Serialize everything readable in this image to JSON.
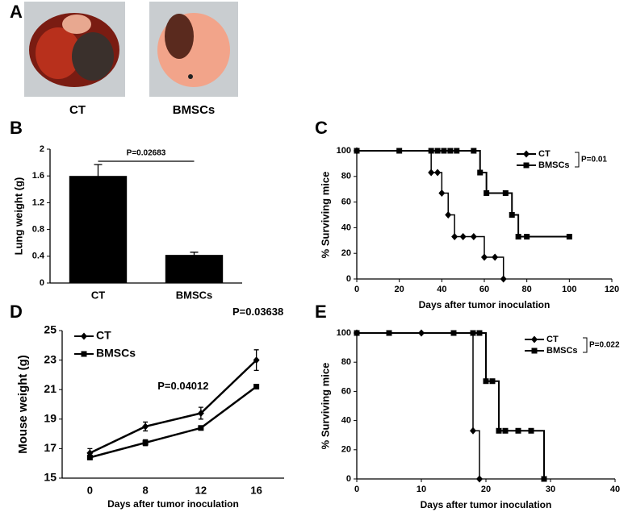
{
  "panel_a": {
    "panel": "A",
    "labels": [
      "CT",
      "BMSCs"
    ]
  },
  "chart_data": [
    {
      "type": "bar",
      "panel": "B",
      "ylabel": "Lung  weight (g)",
      "annotation": "P=0.02683",
      "categories": [
        "CT",
        "BMSCs"
      ],
      "values": [
        1.6,
        0.42
      ],
      "errors": [
        0.17,
        0.04
      ],
      "color": "#000000",
      "ylim": [
        0,
        2
      ],
      "yticks": [
        0,
        0.4,
        0.8,
        1.2,
        1.6,
        2
      ]
    },
    {
      "type": "step",
      "panel": "C",
      "xlabel": "Days after tumor inoculation",
      "ylabel": "% Surviving mice",
      "annotation": "P=0.01",
      "series": [
        {
          "name": "CT",
          "color": "#000000",
          "marker": "diamond",
          "x": [
            0,
            35,
            38,
            40,
            43,
            46,
            50,
            55,
            60,
            65,
            69
          ],
          "values": [
            100,
            83,
            83,
            67,
            50,
            33,
            33,
            33,
            17,
            17,
            0
          ]
        },
        {
          "name": "BMSCs",
          "color": "#000000",
          "marker": "square",
          "x": [
            0,
            20,
            35,
            38,
            41,
            44,
            47,
            55,
            58,
            61,
            70,
            73,
            76,
            80,
            100
          ],
          "values": [
            100,
            100,
            100,
            100,
            100,
            100,
            100,
            100,
            83,
            67,
            67,
            50,
            33,
            33,
            33
          ]
        }
      ],
      "xlim": [
        0,
        120
      ],
      "xticks": [
        0,
        20,
        40,
        60,
        80,
        100,
        120
      ],
      "ylim": [
        0,
        100
      ],
      "yticks": [
        0,
        20,
        40,
        60,
        80,
        100
      ]
    },
    {
      "type": "line",
      "panel": "D",
      "xlabel": "Days after tumor inoculation",
      "ylabel": "Mouse weight (g)",
      "annotations": [
        "P=0.04012",
        "P=0.03638"
      ],
      "categories": [
        "0",
        "8",
        "12",
        "16"
      ],
      "series": [
        {
          "name": "CT",
          "color": "#000000",
          "marker": "diamond",
          "values": [
            16.7,
            18.5,
            19.4,
            23.0
          ],
          "errors": [
            0.3,
            0.3,
            0.4,
            0.7
          ]
        },
        {
          "name": "BMSCs",
          "color": "#000000",
          "marker": "square",
          "values": [
            16.4,
            17.4,
            18.4,
            21.2
          ],
          "errors": [
            0.15,
            0.2,
            0.1,
            0.1
          ]
        }
      ],
      "ylim": [
        15,
        25
      ],
      "yticks": [
        15,
        17,
        19,
        21,
        23,
        25
      ]
    },
    {
      "type": "step",
      "panel": "E",
      "xlabel": "Days after tumor inoculation",
      "ylabel": "% Surviving mice",
      "annotation": "P=0.022",
      "series": [
        {
          "name": "CT",
          "color": "#000000",
          "marker": "diamond",
          "x": [
            0,
            10,
            18,
            19
          ],
          "values": [
            100,
            100,
            33,
            0
          ]
        },
        {
          "name": "BMSCs",
          "color": "#000000",
          "marker": "square",
          "x": [
            0,
            5,
            15,
            18,
            19,
            20,
            21,
            22,
            23,
            25,
            27,
            29
          ],
          "values": [
            100,
            100,
            100,
            100,
            100,
            67,
            67,
            33,
            33,
            33,
            33,
            0
          ]
        }
      ],
      "xlim": [
        0,
        40
      ],
      "xticks": [
        0,
        10,
        20,
        30,
        40
      ],
      "ylim": [
        0,
        100
      ],
      "yticks": [
        0,
        20,
        40,
        60,
        80,
        100
      ]
    }
  ]
}
